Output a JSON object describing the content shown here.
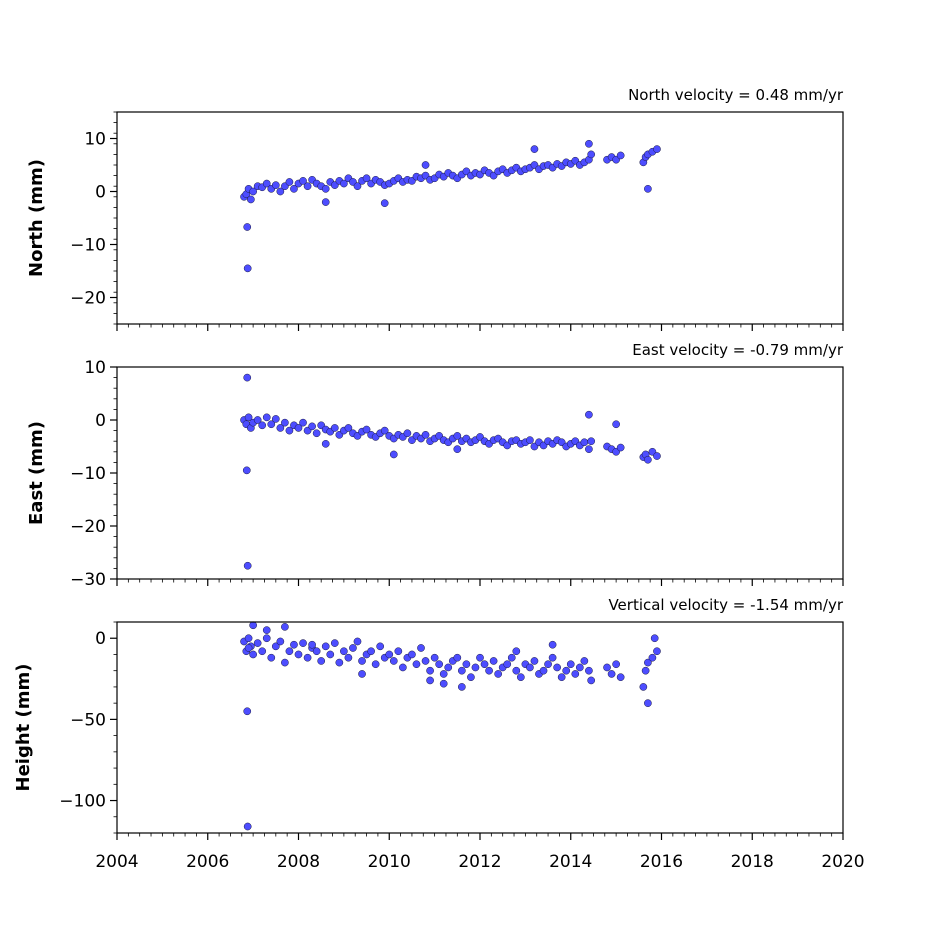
{
  "chart_data": [
    {
      "type": "scatter",
      "velocity_label": "North velocity = 0.48 mm/yr",
      "ylabel": "North (mm)",
      "xlim": [
        2004,
        2020
      ],
      "ylim": [
        -25,
        15
      ],
      "yticks": [
        10,
        0,
        -10,
        -20
      ],
      "ytick_labels": [
        "10",
        "0",
        "−10",
        "−20"
      ],
      "marker_color": "#4d4dff",
      "series": [
        {
          "x": [
            2006.8,
            2006.85,
            2006.9,
            2006.95,
            2007.0,
            2007.1,
            2007.2,
            2007.3,
            2007.4,
            2007.5,
            2007.6,
            2007.7,
            2007.8,
            2007.9,
            2008.0,
            2008.1,
            2008.2,
            2008.3,
            2008.4,
            2008.5,
            2008.6,
            2008.7,
            2008.8,
            2008.9,
            2009.0,
            2009.1,
            2009.2,
            2009.3,
            2009.4,
            2009.5,
            2009.6,
            2009.7,
            2009.8,
            2009.9,
            2010.0,
            2010.1,
            2010.2,
            2010.3,
            2010.4,
            2010.5,
            2010.6,
            2010.7,
            2010.8,
            2010.9,
            2011.0,
            2011.1,
            2011.2,
            2011.3,
            2011.4,
            2011.5,
            2011.6,
            2011.7,
            2011.8,
            2011.9,
            2012.0,
            2012.1,
            2012.2,
            2012.3,
            2012.4,
            2012.5,
            2012.6,
            2012.7,
            2012.8,
            2012.9,
            2013.0,
            2013.1,
            2013.2,
            2013.3,
            2013.4,
            2013.5,
            2013.6,
            2013.7,
            2013.8,
            2013.9,
            2014.0,
            2014.1,
            2014.2,
            2014.3,
            2014.4,
            2014.45,
            2014.8,
            2014.9,
            2015.0,
            2015.1,
            2015.6,
            2015.65,
            2015.7,
            2015.8,
            2015.9,
            2006.87,
            2006.88,
            2008.6,
            2009.9,
            2010.8,
            2013.2,
            2014.4,
            2015.7
          ],
          "y": [
            -1.0,
            -0.5,
            0.5,
            -1.5,
            0.0,
            1.0,
            0.8,
            1.5,
            0.5,
            1.2,
            0.0,
            1.0,
            1.8,
            0.5,
            1.5,
            2.0,
            1.0,
            2.2,
            1.5,
            1.0,
            0.5,
            1.8,
            1.2,
            2.0,
            1.5,
            2.5,
            1.8,
            1.0,
            2.0,
            2.5,
            1.5,
            2.2,
            1.8,
            1.2,
            1.5,
            2.0,
            2.5,
            1.8,
            2.2,
            2.0,
            2.8,
            2.5,
            3.0,
            2.2,
            2.5,
            3.2,
            2.8,
            3.5,
            3.0,
            2.5,
            3.2,
            3.8,
            3.0,
            3.5,
            3.2,
            4.0,
            3.5,
            3.0,
            3.8,
            4.2,
            3.5,
            4.0,
            4.5,
            3.8,
            4.2,
            4.5,
            5.0,
            4.2,
            4.8,
            5.0,
            4.5,
            5.2,
            4.8,
            5.5,
            5.2,
            5.8,
            5.0,
            5.5,
            6.0,
            7.0,
            6.0,
            6.5,
            6.0,
            6.8,
            5.5,
            6.5,
            7.0,
            7.5,
            8.0,
            -6.7,
            -14.5,
            -2.0,
            -2.2,
            5.0,
            8.0,
            9.0,
            0.5
          ]
        }
      ]
    },
    {
      "type": "scatter",
      "velocity_label": "East velocity = -0.79 mm/yr",
      "ylabel": "East (mm)",
      "xlim": [
        2004,
        2020
      ],
      "ylim": [
        -30,
        10
      ],
      "yticks": [
        10,
        0,
        -10,
        -20,
        -30
      ],
      "ytick_labels": [
        "10",
        "0",
        "−10",
        "−20",
        "−30"
      ],
      "marker_color": "#4d4dff",
      "series": [
        {
          "x": [
            2006.8,
            2006.85,
            2006.9,
            2006.95,
            2007.0,
            2007.1,
            2007.2,
            2007.3,
            2007.4,
            2007.5,
            2007.6,
            2007.7,
            2007.8,
            2007.9,
            2008.0,
            2008.1,
            2008.2,
            2008.3,
            2008.4,
            2008.5,
            2008.6,
            2008.7,
            2008.8,
            2008.9,
            2009.0,
            2009.1,
            2009.2,
            2009.3,
            2009.4,
            2009.5,
            2009.6,
            2009.7,
            2009.8,
            2009.9,
            2010.0,
            2010.1,
            2010.2,
            2010.3,
            2010.4,
            2010.5,
            2010.6,
            2010.7,
            2010.8,
            2010.9,
            2011.0,
            2011.1,
            2011.2,
            2011.3,
            2011.4,
            2011.5,
            2011.6,
            2011.7,
            2011.8,
            2011.9,
            2012.0,
            2012.1,
            2012.2,
            2012.3,
            2012.4,
            2012.5,
            2012.6,
            2012.7,
            2012.8,
            2012.9,
            2013.0,
            2013.1,
            2013.2,
            2013.3,
            2013.4,
            2013.5,
            2013.6,
            2013.7,
            2013.8,
            2013.9,
            2014.0,
            2014.1,
            2014.2,
            2014.3,
            2014.4,
            2014.45,
            2014.8,
            2014.9,
            2015.0,
            2015.1,
            2015.6,
            2015.65,
            2015.7,
            2015.8,
            2015.9,
            2006.87,
            2006.88,
            2006.86,
            2008.6,
            2010.1,
            2011.5,
            2014.4,
            2015.0
          ],
          "y": [
            0.0,
            -0.8,
            0.5,
            -1.5,
            -0.5,
            0.0,
            -1.0,
            0.5,
            -0.8,
            0.2,
            -1.5,
            -0.5,
            -2.0,
            -1.0,
            -1.5,
            -0.5,
            -2.0,
            -1.2,
            -2.5,
            -1.0,
            -1.8,
            -2.2,
            -1.5,
            -2.8,
            -2.0,
            -1.5,
            -2.5,
            -3.0,
            -2.2,
            -1.8,
            -2.8,
            -3.2,
            -2.5,
            -2.0,
            -3.0,
            -3.5,
            -2.8,
            -3.2,
            -2.5,
            -3.8,
            -3.0,
            -3.5,
            -2.8,
            -4.0,
            -3.5,
            -3.0,
            -3.8,
            -4.2,
            -3.5,
            -3.0,
            -4.0,
            -3.5,
            -4.2,
            -3.8,
            -3.2,
            -4.0,
            -4.5,
            -3.8,
            -3.5,
            -4.2,
            -4.8,
            -4.0,
            -3.8,
            -4.5,
            -4.2,
            -3.8,
            -5.0,
            -4.2,
            -4.8,
            -4.0,
            -4.5,
            -3.8,
            -4.2,
            -5.0,
            -4.5,
            -4.0,
            -4.8,
            -4.2,
            -5.5,
            -4.0,
            -5.0,
            -5.5,
            -6.0,
            -5.2,
            -7.0,
            -6.5,
            -7.5,
            -6.0,
            -6.8,
            8.0,
            -27.5,
            -9.5,
            -4.5,
            -6.5,
            -5.5,
            1.0,
            -0.8
          ]
        }
      ]
    },
    {
      "type": "scatter",
      "velocity_label": "Vertical velocity = -1.54 mm/yr",
      "ylabel": "Height (mm)",
      "xlim": [
        2004,
        2020
      ],
      "ylim": [
        -120,
        10
      ],
      "yticks": [
        0,
        -50,
        -100
      ],
      "ytick_labels": [
        "0",
        "−50",
        "−100"
      ],
      "xticks": [
        2004,
        2006,
        2008,
        2010,
        2012,
        2014,
        2016,
        2018,
        2020
      ],
      "xtick_labels": [
        "2004",
        "2006",
        "2008",
        "2010",
        "2012",
        "2014",
        "2016",
        "2018",
        "2020"
      ],
      "marker_color": "#4d4dff",
      "series": [
        {
          "x": [
            2006.8,
            2006.85,
            2006.9,
            2006.95,
            2007.0,
            2007.1,
            2007.2,
            2007.3,
            2007.4,
            2007.5,
            2007.6,
            2007.7,
            2007.8,
            2007.9,
            2008.0,
            2008.1,
            2008.2,
            2008.3,
            2008.4,
            2008.5,
            2008.6,
            2008.7,
            2008.8,
            2008.9,
            2009.0,
            2009.1,
            2009.2,
            2009.3,
            2009.4,
            2009.5,
            2009.6,
            2009.7,
            2009.8,
            2009.9,
            2010.0,
            2010.1,
            2010.2,
            2010.3,
            2010.4,
            2010.5,
            2010.6,
            2010.7,
            2010.8,
            2010.9,
            2011.0,
            2011.1,
            2011.2,
            2011.3,
            2011.4,
            2011.5,
            2011.6,
            2011.7,
            2011.8,
            2011.9,
            2012.0,
            2012.1,
            2012.2,
            2012.3,
            2012.4,
            2012.5,
            2012.6,
            2012.7,
            2012.8,
            2012.9,
            2013.0,
            2013.1,
            2013.2,
            2013.3,
            2013.4,
            2013.5,
            2013.6,
            2013.7,
            2013.8,
            2013.9,
            2014.0,
            2014.1,
            2014.2,
            2014.3,
            2014.4,
            2014.45,
            2014.8,
            2014.9,
            2015.0,
            2015.1,
            2015.6,
            2015.65,
            2015.7,
            2015.8,
            2015.9,
            2006.87,
            2006.88,
            2007.0,
            2007.3,
            2007.7,
            2009.4,
            2011.2,
            2011.6,
            2015.7,
            2015.85,
            2006.9,
            2008.3,
            2010.9,
            2012.8,
            2013.6
          ],
          "y": [
            -2,
            -8,
            0,
            -5,
            -10,
            -3,
            -8,
            0,
            -12,
            -5,
            -2,
            -15,
            -8,
            -4,
            -10,
            -3,
            -12,
            -6,
            -8,
            -14,
            -5,
            -10,
            -3,
            -15,
            -8,
            -12,
            -6,
            -2,
            -14,
            -10,
            -8,
            -16,
            -5,
            -12,
            -10,
            -14,
            -8,
            -18,
            -12,
            -10,
            -16,
            -6,
            -14,
            -20,
            -12,
            -16,
            -22,
            -18,
            -14,
            -12,
            -20,
            -16,
            -24,
            -18,
            -12,
            -16,
            -20,
            -14,
            -22,
            -18,
            -16,
            -12,
            -20,
            -24,
            -16,
            -18,
            -14,
            -22,
            -20,
            -16,
            -12,
            -18,
            -24,
            -20,
            -16,
            -22,
            -18,
            -14,
            -20,
            -26,
            -18,
            -22,
            -16,
            -24,
            -30,
            -20,
            -15,
            -12,
            -8,
            -45,
            -116,
            8,
            5,
            7,
            -22,
            -28,
            -30,
            -40,
            0,
            -6,
            -4,
            -26,
            -8,
            -4
          ]
        }
      ]
    }
  ]
}
